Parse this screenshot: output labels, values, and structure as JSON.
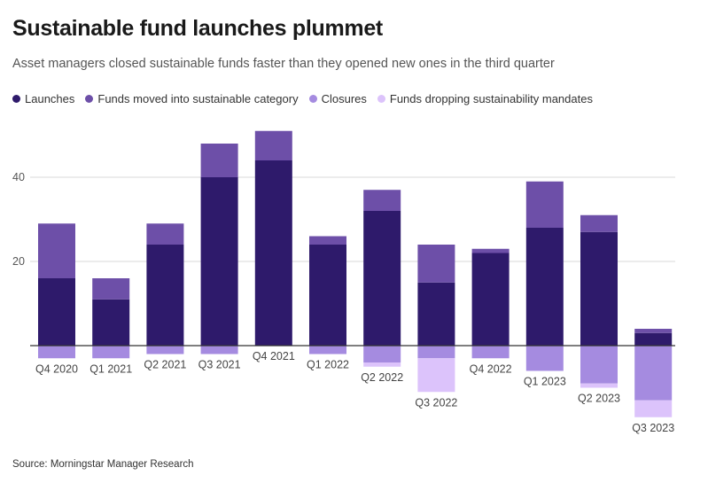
{
  "chart_data": {
    "type": "bar",
    "title": "Sustainable fund launches plummet",
    "subtitle": "Asset managers closed sustainable funds faster than they opened new ones in the third quarter",
    "source": "Source: Morningstar Manager Research",
    "categories": [
      "Q4 2020",
      "Q1 2021",
      "Q2 2021",
      "Q3 2021",
      "Q4 2021",
      "Q1 2022",
      "Q2 2022",
      "Q3 2022",
      "Q4 2022",
      "Q1 2023",
      "Q2 2023",
      "Q3 2023"
    ],
    "series": [
      {
        "name": "Launches",
        "color": "#2e1a6b",
        "values": [
          16,
          11,
          24,
          40,
          44,
          24,
          32,
          15,
          22,
          28,
          27,
          3
        ]
      },
      {
        "name": "Funds moved into sustainable category",
        "color": "#6d4fa8",
        "values": [
          13,
          5,
          5,
          8,
          7,
          2,
          5,
          9,
          1,
          11,
          4,
          1
        ]
      },
      {
        "name": "Closures",
        "color": "#a58be0",
        "values": [
          -3,
          -3,
          -2,
          -2,
          0,
          -2,
          -4,
          -3,
          -3,
          -6,
          -9,
          -13
        ]
      },
      {
        "name": "Funds dropping sustainability mandates",
        "color": "#dcc3fb",
        "values": [
          0,
          0,
          0,
          0,
          0,
          0,
          -1,
          -8,
          0,
          0,
          -1,
          -4
        ]
      }
    ],
    "yticks": [
      20,
      40
    ],
    "ylim": [
      -18,
      52
    ],
    "grid": true,
    "legend_position": "top-left"
  }
}
